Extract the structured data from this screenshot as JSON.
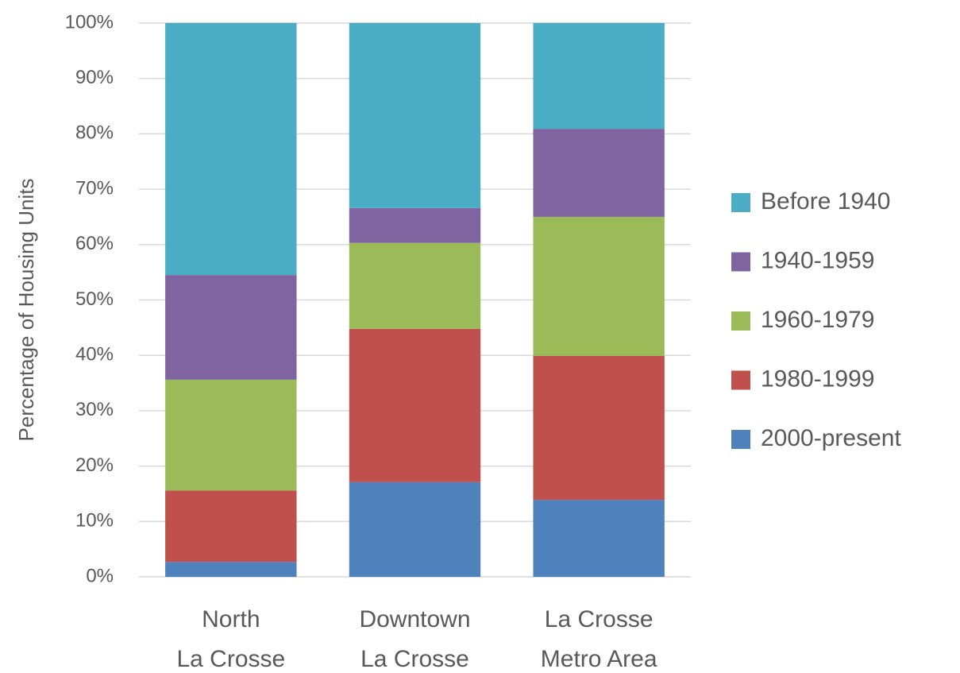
{
  "chart_data": {
    "type": "stacked_bar",
    "y_label": "Percentage of Housing Units",
    "categories": [
      "North\nLa Crosse",
      "Downtown\nLa Crosse",
      "La Crosse\nMetro Area"
    ],
    "series": [
      {
        "name": "2000-present",
        "color": "#4f81bd",
        "values": [
          2.7,
          17.1,
          13.9
        ]
      },
      {
        "name": "1980-1999",
        "color": "#c0504d",
        "values": [
          12.9,
          27.7,
          26.0
        ]
      },
      {
        "name": "1960-1979",
        "color": "#9bbb59",
        "values": [
          20.0,
          15.5,
          25.1
        ]
      },
      {
        "name": "1940-1959",
        "color": "#8064a2",
        "values": [
          18.9,
          6.3,
          15.9
        ]
      },
      {
        "name": "Before 1940",
        "color": "#4bacc6",
        "values": [
          45.5,
          33.4,
          19.1
        ]
      }
    ],
    "ylim": [
      0,
      100
    ],
    "yticks": [
      {
        "value": 0,
        "label": "0%"
      },
      {
        "value": 10,
        "label": "10%"
      },
      {
        "value": 20,
        "label": "20%"
      },
      {
        "value": 30,
        "label": "30%"
      },
      {
        "value": 40,
        "label": "40%"
      },
      {
        "value": 50,
        "label": "50%"
      },
      {
        "value": 60,
        "label": "60%"
      },
      {
        "value": 70,
        "label": "70%"
      },
      {
        "value": 80,
        "label": "80%"
      },
      {
        "value": 90,
        "label": "90%"
      },
      {
        "value": 100,
        "label": "100%"
      }
    ],
    "grid": true,
    "legend": "right"
  }
}
